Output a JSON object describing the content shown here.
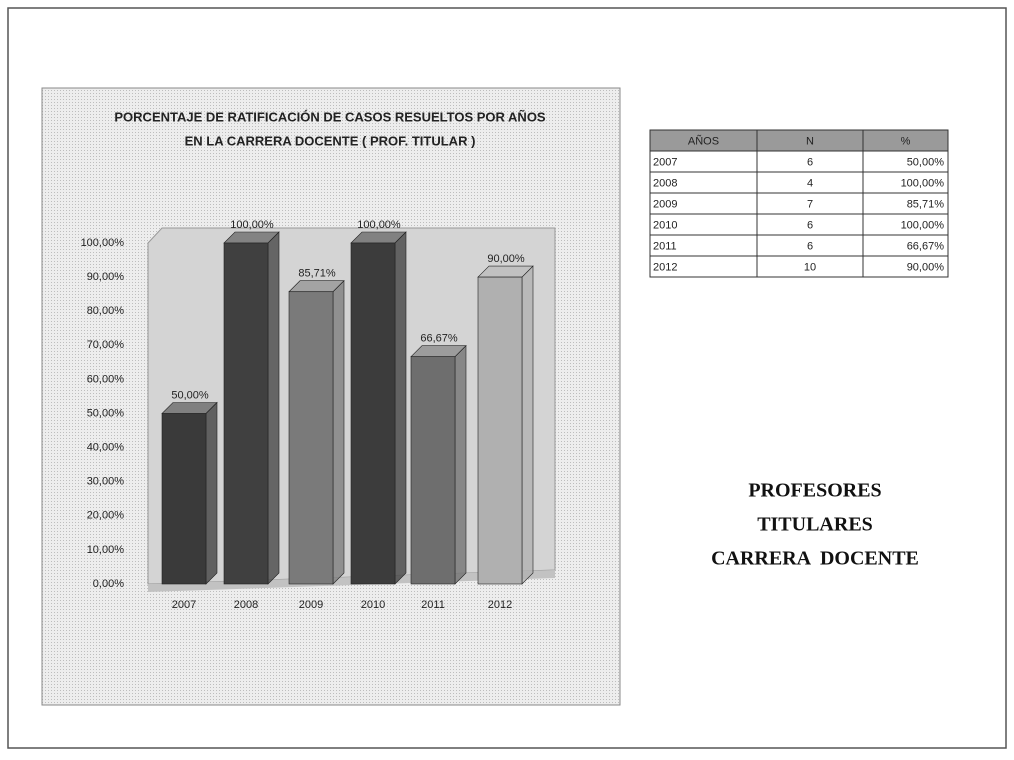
{
  "chart_data": {
    "type": "bar3d",
    "title": [
      "PORCENTAJE DE RATIFICACIÓN DE CASOS RESUELTOS POR AÑOS",
      "EN LA CARRERA DOCENTE ( PROF. TITULAR )"
    ],
    "categories": [
      "2007",
      "2008",
      "2009",
      "2010",
      "2011",
      "2012"
    ],
    "values": [
      50,
      100,
      85.71,
      100,
      66.67,
      90
    ],
    "value_labels": [
      "50,00%",
      "100,00%",
      "85,71%",
      "100,00%",
      "66,67%",
      "90,00%"
    ],
    "colors": [
      "#3a3a3a",
      "#404040",
      "#7a7a7a",
      "#3c3c3c",
      "#6e6e6e",
      "#b0b0b0"
    ],
    "ylim": [
      0,
      100
    ],
    "yticks": [
      {
        "value": 0,
        "label": "0,00%"
      },
      {
        "value": 10,
        "label": "10,00%"
      },
      {
        "value": 20,
        "label": "20,00%"
      },
      {
        "value": 30,
        "label": "30,00%"
      },
      {
        "value": 40,
        "label": "40,00%"
      },
      {
        "value": 50,
        "label": "50,00%"
      },
      {
        "value": 60,
        "label": "60,00%"
      },
      {
        "value": 70,
        "label": "70,00%"
      },
      {
        "value": 80,
        "label": "80,00%"
      },
      {
        "value": 90,
        "label": "90,00%"
      },
      {
        "value": 100,
        "label": "100,00%"
      }
    ],
    "grid": false
  },
  "table": {
    "header": [
      "AÑOS",
      "N",
      "%"
    ],
    "rows": [
      [
        "2007",
        "6",
        "50,00%"
      ],
      [
        "2008",
        "4",
        "100,00%"
      ],
      [
        "2009",
        "7",
        "85,71%"
      ],
      [
        "2010",
        "6",
        "100,00%"
      ],
      [
        "2011",
        "6",
        "66,67%"
      ],
      [
        "2012",
        "10",
        "90,00%"
      ]
    ]
  },
  "caption": [
    "PROFESORES",
    "TITULARES",
    "CARRERA  DOCENTE"
  ]
}
